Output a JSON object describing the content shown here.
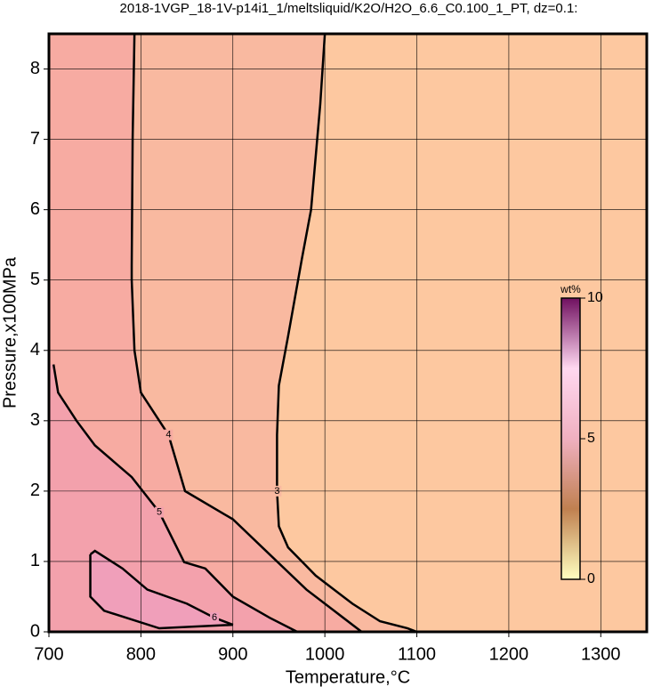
{
  "chart_data": {
    "type": "contour",
    "title": "2018-1VGP_18-1V-p14i1_1/meltsliquid/K2O/H2O_6.6_C0.100_1_PT, dz=0.1:",
    "x_label": "Temperature,°C",
    "y_label": "Pressure,x100MPa",
    "xlim": [
      700,
      1350
    ],
    "ylim": [
      0,
      8.5
    ],
    "xticks": [
      700,
      800,
      900,
      1000,
      1100,
      1200,
      1300
    ],
    "yticks": [
      0,
      1,
      2,
      3,
      4,
      5,
      6,
      7,
      8
    ],
    "grid": true,
    "background": "#fdc8a0",
    "contours": [
      {
        "level": 3,
        "color": "#f9b9a0",
        "x": [
          1000,
          995,
          985,
          975,
          960,
          950,
          948,
          948,
          950,
          960,
          990,
          1030,
          1060,
          1090,
          1100
        ],
        "y": [
          8.5,
          7.5,
          6,
          5.3,
          4.2,
          3.5,
          2.8,
          2,
          1.5,
          1.2,
          0.8,
          0.4,
          0.15,
          0.05,
          0
        ]
      },
      {
        "level": 4,
        "color": "#f7aba2",
        "x": [
          793,
          791,
          790,
          790,
          793,
          800,
          830,
          848,
          900,
          940,
          980,
          1010,
          1040
        ],
        "y": [
          8.5,
          7,
          5.2,
          5,
          4,
          3.4,
          2.8,
          2,
          1.6,
          1.1,
          0.6,
          0.3,
          0
        ]
      },
      {
        "level": 5,
        "color": "#f3a1ac",
        "x": [
          705,
          710,
          730,
          750,
          790,
          820,
          847,
          870,
          900,
          940,
          970
        ],
        "y": [
          3.8,
          3.4,
          3.0,
          2.65,
          2.2,
          1.7,
          0.99,
          0.9,
          0.5,
          0.2,
          0
        ]
      },
      {
        "level": 6,
        "color": "#f09fba",
        "x": [
          745,
          750,
          780,
          807,
          850,
          880,
          900,
          820,
          760,
          745,
          745
        ],
        "y": [
          1.1,
          1.15,
          0.9,
          0.6,
          0.4,
          0.2,
          0.1,
          0.05,
          0.3,
          0.5,
          1.1
        ]
      }
    ],
    "colorbar": {
      "label": "wt%",
      "lim": [
        0,
        10
      ],
      "ticks": [
        0,
        5,
        10
      ],
      "colors": [
        "#ffffc0",
        "#c08050",
        "#f0b0c0",
        "#ffd8f0",
        "#701060"
      ]
    }
  }
}
